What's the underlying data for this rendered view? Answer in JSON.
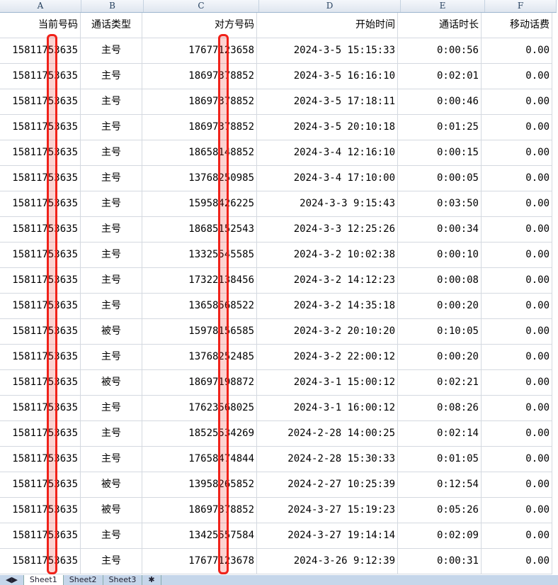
{
  "columns": [
    "A",
    "B",
    "C",
    "D",
    "E",
    "F"
  ],
  "headers": [
    "当前号码",
    "通话类型",
    "对方号码",
    "开始时间",
    "通话时长",
    "移动话费"
  ],
  "rows": [
    [
      "15811753635",
      "主号",
      "17677123658",
      "2024-3-5 15:15:33",
      "0:00:56",
      "0.00"
    ],
    [
      "15811753635",
      "主号",
      "18697378852",
      "2024-3-5 16:16:10",
      "0:02:01",
      "0.00"
    ],
    [
      "15811753635",
      "主号",
      "18697378852",
      "2024-3-5 17:18:11",
      "0:00:46",
      "0.00"
    ],
    [
      "15811753635",
      "主号",
      "18697378852",
      "2024-3-5 20:10:18",
      "0:01:25",
      "0.00"
    ],
    [
      "15811753635",
      "主号",
      "18658148852",
      "2024-3-4 12:16:10",
      "0:00:15",
      "0.00"
    ],
    [
      "15811753635",
      "主号",
      "13768250985",
      "2024-3-4 17:10:00",
      "0:00:05",
      "0.00"
    ],
    [
      "15811753635",
      "主号",
      "15958426225",
      "2024-3-3 9:15:43",
      "0:03:50",
      "0.00"
    ],
    [
      "15811753635",
      "主号",
      "18685152543",
      "2024-3-3 12:25:26",
      "0:00:34",
      "0.00"
    ],
    [
      "15811753635",
      "主号",
      "13325545585",
      "2024-3-2 10:02:38",
      "0:00:10",
      "0.00"
    ],
    [
      "15811753635",
      "主号",
      "17322138456",
      "2024-3-2 14:12:23",
      "0:00:08",
      "0.00"
    ],
    [
      "15811753635",
      "主号",
      "13658568522",
      "2024-3-2 14:35:18",
      "0:00:20",
      "0.00"
    ],
    [
      "15811753635",
      "被号",
      "15978156585",
      "2024-3-2 20:10:20",
      "0:10:05",
      "0.00"
    ],
    [
      "15811753635",
      "主号",
      "13768252485",
      "2024-3-2 22:00:12",
      "0:00:20",
      "0.00"
    ],
    [
      "15811753635",
      "被号",
      "18697198872",
      "2024-3-1 15:00:12",
      "0:02:21",
      "0.00"
    ],
    [
      "15811753635",
      "主号",
      "17623568025",
      "2024-3-1 16:00:12",
      "0:08:26",
      "0.00"
    ],
    [
      "15811753635",
      "主号",
      "18525534269",
      "2024-2-28 14:00:25",
      "0:02:14",
      "0.00"
    ],
    [
      "15811753635",
      "主号",
      "17658474844",
      "2024-2-28 15:30:33",
      "0:01:05",
      "0.00"
    ],
    [
      "15811753635",
      "被号",
      "13958265852",
      "2024-2-27 10:25:39",
      "0:12:54",
      "0.00"
    ],
    [
      "15811753635",
      "被号",
      "18697378852",
      "2024-3-27 15:19:23",
      "0:05:26",
      "0.00"
    ],
    [
      "15811753635",
      "主号",
      "13425557584",
      "2024-3-27 19:14:14",
      "0:02:09",
      "0.00"
    ],
    [
      "15811753635",
      "主号",
      "17677123678",
      "2024-3-26 9:12:39",
      "0:00:31",
      "0.00"
    ]
  ],
  "sheet_tabs": [
    "Sheet1",
    "Sheet2",
    "Sheet3"
  ],
  "redaction_color": "#f0221a"
}
